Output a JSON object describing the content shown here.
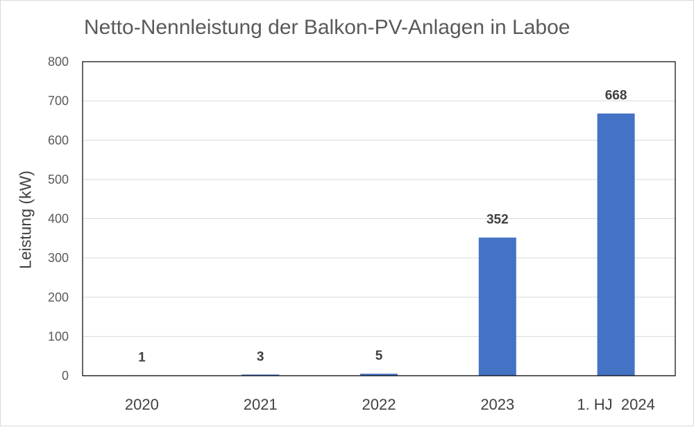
{
  "chart_data": {
    "type": "bar",
    "title": "Netto-Nennleistung der Balkon-PV-Anlagen in Laboe",
    "xlabel": "",
    "ylabel": "Leistung (kW)",
    "categories": [
      "2020",
      "2021",
      "2022",
      "2023",
      "1. HJ  2024"
    ],
    "values": [
      1,
      3,
      5,
      352,
      668
    ],
    "data_labels": [
      "1",
      "3",
      "5",
      "352",
      "668"
    ],
    "ylim": [
      0,
      800
    ],
    "yticks": [
      0,
      100,
      200,
      300,
      400,
      500,
      600,
      700,
      800
    ],
    "grid": true,
    "legend": "none",
    "colors": {
      "bar": "#4472c4",
      "grid": "#d9d9d9",
      "plot_border": "#000000"
    }
  }
}
